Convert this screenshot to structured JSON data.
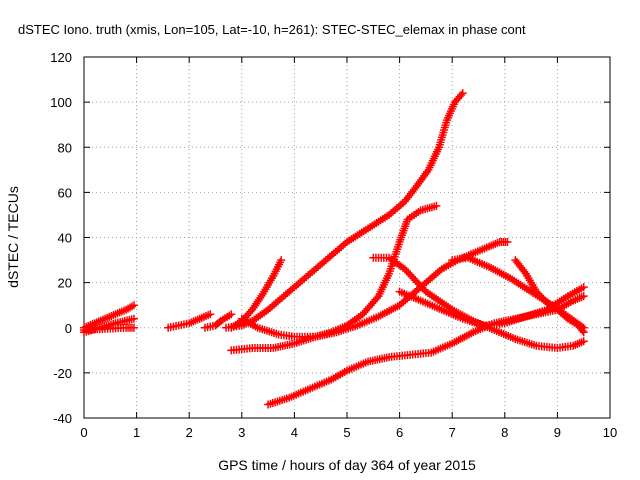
{
  "chart_data": {
    "type": "scatter",
    "title": "dSTEC Iono. truth (xmis, Lon=105, Lat=-10, h=261): STEC-STEC_elemax in phase cont",
    "xlabel": "GPS time / hours of day 364 of year 2015",
    "ylabel": "dSTEC  / TECUs",
    "xlim": [
      0,
      10
    ],
    "ylim": [
      -40,
      120
    ],
    "xticks": [
      "0",
      "1",
      "2",
      "3",
      "4",
      "5",
      "6",
      "7",
      "8",
      "9",
      "10"
    ],
    "yticks": [
      "-40",
      "-20",
      "0",
      "20",
      "40",
      "60",
      "80",
      "100",
      "120"
    ],
    "grid": true,
    "marker": "plus",
    "color": "#ff0000",
    "series": [
      {
        "x": [
          0,
          0.2,
          0.4,
          0.6,
          0.8,
          0.95
        ],
        "y": [
          0,
          2,
          4,
          6,
          8,
          10
        ]
      },
      {
        "x": [
          0,
          0.3,
          0.6,
          0.95
        ],
        "y": [
          -2,
          0,
          2,
          4
        ]
      },
      {
        "x": [
          0,
          0.4,
          0.8,
          0.95
        ],
        "y": [
          -1,
          -0.5,
          0,
          0
        ]
      },
      {
        "x": [
          1.6,
          1.8,
          2.0,
          2.2,
          2.4
        ],
        "y": [
          0,
          1,
          2,
          4,
          6
        ]
      },
      {
        "x": [
          2.3,
          2.5,
          2.6,
          2.8
        ],
        "y": [
          0,
          1,
          3,
          6
        ]
      },
      {
        "x": [
          2.8,
          3.0,
          3.2,
          3.4,
          3.6,
          3.75
        ],
        "y": [
          0,
          3,
          8,
          15,
          23,
          30
        ]
      },
      {
        "x": [
          2.7,
          3.0,
          3.2,
          3.5,
          3.8,
          4.0,
          4.3,
          4.6,
          5.0,
          5.4,
          5.8,
          6.1,
          6.3,
          6.55,
          6.75,
          6.9,
          7.05,
          7.2
        ],
        "y": [
          0,
          1,
          3,
          8,
          14,
          18,
          24,
          30,
          38,
          44,
          50,
          56,
          62,
          70,
          80,
          92,
          100,
          104
        ]
      },
      {
        "x": [
          3.0,
          3.3,
          3.7,
          4.0,
          4.4,
          4.7,
          5.0,
          5.3,
          5.6,
          5.8,
          6.0,
          6.15,
          6.4,
          6.7
        ],
        "y": [
          4,
          0,
          -3,
          -4,
          -4,
          -2,
          1,
          6,
          14,
          24,
          38,
          48,
          52,
          54
        ]
      },
      {
        "x": [
          2.8,
          3.2,
          3.6,
          4.0,
          4.4,
          4.8,
          5.2,
          5.6,
          6.0,
          6.4,
          6.8,
          7.1,
          7.4,
          7.7,
          7.9,
          8.05
        ],
        "y": [
          -10,
          -9,
          -9,
          -7,
          -4,
          -2,
          1,
          5,
          10,
          18,
          26,
          30,
          33,
          36,
          38,
          38
        ]
      },
      {
        "x": [
          3.5,
          3.9,
          4.3,
          4.7,
          5.0,
          5.4,
          5.8,
          6.2,
          6.6,
          7.0,
          7.4,
          7.8,
          8.2,
          8.6,
          9.0,
          9.3,
          9.5
        ],
        "y": [
          -34,
          -31,
          -27,
          -23,
          -19,
          -15,
          -13,
          -12,
          -11,
          -7,
          -2,
          2,
          4,
          6,
          8,
          12,
          14
        ]
      },
      {
        "x": [
          5.5,
          5.8,
          6.1,
          6.5,
          7.0,
          7.4,
          7.8,
          8.2,
          8.6,
          9.0,
          9.3,
          9.5
        ],
        "y": [
          31,
          31,
          26,
          16,
          8,
          3,
          -1,
          -5,
          -8,
          -9,
          -8,
          -6
        ]
      },
      {
        "x": [
          7.0,
          7.3,
          7.7,
          8.1,
          8.5,
          8.9,
          9.2,
          9.5
        ],
        "y": [
          30,
          31,
          27,
          22,
          16,
          10,
          5,
          0
        ]
      },
      {
        "x": [
          6.0,
          6.4,
          6.8,
          7.2,
          7.6,
          8.0,
          8.4,
          8.8,
          9.2,
          9.5
        ],
        "y": [
          16,
          12,
          8,
          4,
          1,
          2,
          5,
          8,
          14,
          18
        ]
      },
      {
        "x": [
          8.2,
          8.4,
          8.6,
          8.8,
          9.0,
          9.2,
          9.4,
          9.5
        ],
        "y": [
          30,
          24,
          16,
          11,
          8,
          4,
          1,
          -2
        ]
      }
    ]
  }
}
